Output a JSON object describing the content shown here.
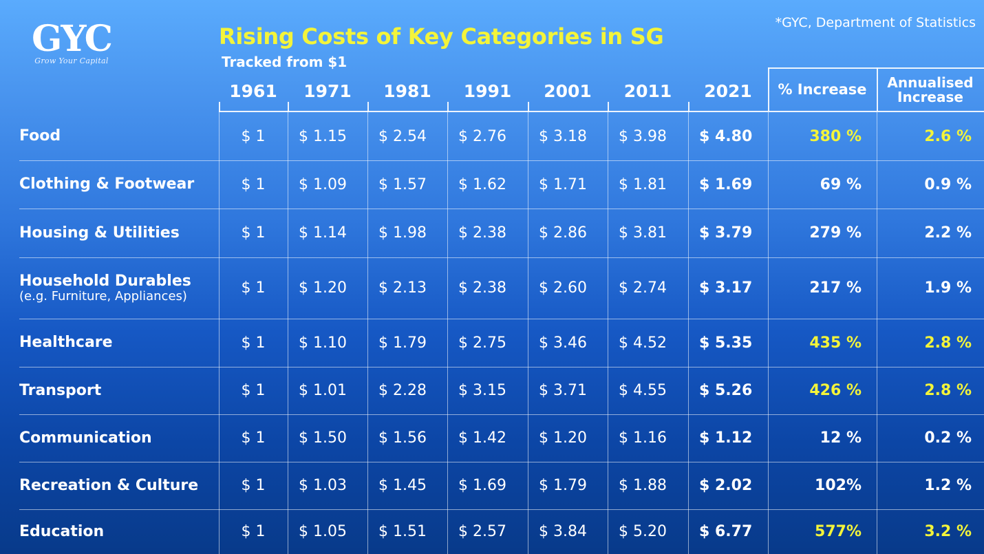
{
  "logo": {
    "mark": "GYC",
    "tagline": "Grow Your Capital"
  },
  "source_note": "*GYC, Department of Statistics",
  "colors": {
    "highlight": "#f3f43a",
    "text": "#ffffff",
    "bg_top": "#5aabfd",
    "bg_bottom": "#083a8a"
  },
  "chart_data": {
    "type": "table",
    "title": "Rising Costs of Key Categories in SG",
    "subtitle": "Tracked from $1",
    "years": [
      "1961",
      "1971",
      "1981",
      "1991",
      "2001",
      "2011",
      "2021"
    ],
    "extra_headers": [
      "% Increase",
      "Annualised Increase"
    ],
    "rows": [
      {
        "category": "Food",
        "note": "",
        "values": [
          "$ 1",
          "$ 1.15",
          "$ 2.54",
          "$ 2.76",
          "$ 3.18",
          "$ 3.98",
          "$ 4.80"
        ],
        "pct_increase": "380 %",
        "annualised": "2.6 %",
        "highlight": true
      },
      {
        "category": "Clothing & Footwear",
        "note": "",
        "values": [
          "$ 1",
          "$ 1.09",
          "$ 1.57",
          "$ 1.62",
          "$ 1.71",
          "$ 1.81",
          "$ 1.69"
        ],
        "pct_increase": "69 %",
        "annualised": "0.9 %",
        "highlight": false
      },
      {
        "category": "Housing & Utilities",
        "note": "",
        "values": [
          "$ 1",
          "$ 1.14",
          "$ 1.98",
          "$ 2.38",
          "$ 2.86",
          "$ 3.81",
          "$ 3.79"
        ],
        "pct_increase": "279 %",
        "annualised": "2.2 %",
        "highlight": false
      },
      {
        "category": "Household Durables",
        "note": "(e.g. Furniture, Appliances)",
        "values": [
          "$ 1",
          "$ 1.20",
          "$ 2.13",
          "$ 2.38",
          "$ 2.60",
          "$ 2.74",
          "$ 3.17"
        ],
        "pct_increase": "217 %",
        "annualised": "1.9 %",
        "highlight": false
      },
      {
        "category": "Healthcare",
        "note": "",
        "values": [
          "$ 1",
          "$ 1.10",
          "$ 1.79",
          "$ 2.75",
          "$ 3.46",
          "$ 4.52",
          "$ 5.35"
        ],
        "pct_increase": "435 %",
        "annualised": "2.8 %",
        "highlight": true
      },
      {
        "category": "Transport",
        "note": "",
        "values": [
          "$ 1",
          "$ 1.01",
          "$ 2.28",
          "$ 3.15",
          "$ 3.71",
          "$ 4.55",
          "$ 5.26"
        ],
        "pct_increase": "426 %",
        "annualised": "2.8 %",
        "highlight": true
      },
      {
        "category": "Communication",
        "note": "",
        "values": [
          "$ 1",
          "$ 1.50",
          "$ 1.56",
          "$ 1.42",
          "$ 1.20",
          "$ 1.16",
          "$ 1.12"
        ],
        "pct_increase": "12 %",
        "annualised": "0.2 %",
        "highlight": false
      },
      {
        "category": "Recreation & Culture",
        "note": "",
        "values": [
          "$ 1",
          "$ 1.03",
          "$ 1.45",
          "$ 1.69",
          "$ 1.79",
          "$ 1.88",
          "$ 2.02"
        ],
        "pct_increase": "102%",
        "annualised": "1.2 %",
        "highlight": false
      },
      {
        "category": "Education",
        "note": "",
        "values": [
          "$ 1",
          "$ 1.05",
          "$ 1.51",
          "$ 2.57",
          "$ 3.84",
          "$ 5.20",
          "$ 6.77"
        ],
        "pct_increase": "577%",
        "annualised": "3.2 %",
        "highlight": true
      }
    ]
  }
}
